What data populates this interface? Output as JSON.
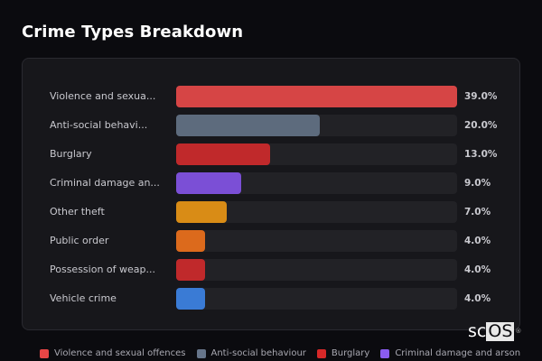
{
  "header": {
    "title": "Crime Types Breakdown"
  },
  "watermark": {
    "prefix": "sc",
    "highlight": "OS",
    "reg": "®"
  },
  "chart_data": {
    "type": "bar",
    "orientation": "horizontal",
    "title": "Crime Types Breakdown",
    "xlabel": "",
    "ylabel": "",
    "unit": "%",
    "categories": [
      "Violence and sexual offences",
      "Anti-social behaviour",
      "Burglary",
      "Criminal damage and arson",
      "Other theft",
      "Public order",
      "Possession of weapons",
      "Vehicle crime"
    ],
    "display_labels": [
      "Violence and sexua...",
      "Anti-social behavi...",
      "Burglary",
      "Criminal damage an...",
      "Other theft",
      "Public order",
      "Possession of weap...",
      "Vehicle crime"
    ],
    "values": [
      39.0,
      20.0,
      13.0,
      9.0,
      7.0,
      4.0,
      4.0,
      4.0
    ],
    "value_labels": [
      "39.0%",
      "20.0%",
      "13.0%",
      "9.0%",
      "7.0%",
      "4.0%",
      "4.0%",
      "4.0%"
    ],
    "colors": [
      "#d64545",
      "#5d6b7d",
      "#c0292b",
      "#7b4fd6",
      "#d98c16",
      "#dc6a1c",
      "#c0292b",
      "#3a7bd5"
    ],
    "scale_max": 39.0,
    "legend_position": "bottom",
    "grid": false
  },
  "legend": [
    {
      "label": "Violence and sexual offences",
      "color": "#e84646"
    },
    {
      "label": "Anti-social behaviour",
      "color": "#66758a"
    },
    {
      "label": "Burglary",
      "color": "#d62828"
    },
    {
      "label": "Criminal damage and arson",
      "color": "#8a5cf0"
    }
  ]
}
